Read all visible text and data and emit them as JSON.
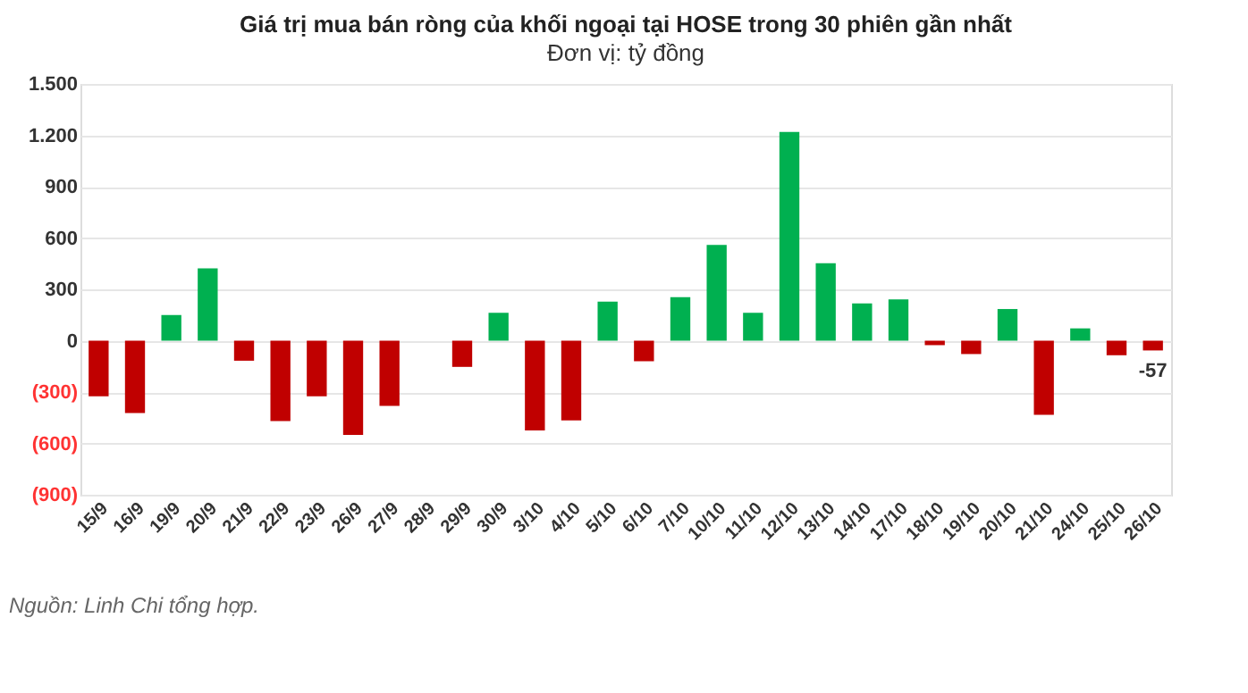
{
  "chart_data": {
    "type": "bar",
    "title": "Giá trị mua bán ròng của khối ngoại tại HOSE trong 30 phiên gần nhất",
    "subtitle": "Đơn vị: tỷ đồng",
    "categories": [
      "15/9",
      "16/9",
      "19/9",
      "20/9",
      "21/9",
      "22/9",
      "23/9",
      "26/9",
      "27/9",
      "28/9",
      "29/9",
      "30/9",
      "3/10",
      "4/10",
      "5/10",
      "6/10",
      "7/10",
      "10/10",
      "11/10",
      "12/10",
      "13/10",
      "14/10",
      "17/10",
      "18/10",
      "19/10",
      "20/10",
      "21/10",
      "24/10",
      "25/10",
      "26/10"
    ],
    "values": [
      -325,
      -423,
      150,
      423,
      -117,
      -469,
      -325,
      -550,
      -381,
      0,
      -153,
      163,
      -524,
      -465,
      228,
      -120,
      254,
      560,
      163,
      1220,
      452,
      218,
      241,
      -26,
      -78,
      185,
      -433,
      72,
      -85,
      -57
    ],
    "colors": [
      "#c00000",
      "#c00000",
      "#00b050",
      "#00b050",
      "#c00000",
      "#c00000",
      "#c00000",
      "#c00000",
      "#c00000",
      "#c00000",
      "#c00000",
      "#00b050",
      "#c00000",
      "#c00000",
      "#00b050",
      "#c00000",
      "#00b050",
      "#00b050",
      "#00b050",
      "#00b050",
      "#00b050",
      "#00b050",
      "#00b050",
      "#c00000",
      "#c00000",
      "#00b050",
      "#c00000",
      "#00b050",
      "#c00000",
      "#c00000"
    ],
    "value_labels": [
      null,
      null,
      null,
      null,
      null,
      null,
      null,
      null,
      null,
      null,
      null,
      null,
      null,
      null,
      null,
      null,
      null,
      null,
      null,
      null,
      null,
      null,
      null,
      null,
      null,
      null,
      null,
      null,
      null,
      "-57"
    ],
    "ylim": [
      -900,
      1500
    ],
    "yticks": [
      {
        "value": 1500,
        "label": "1.500"
      },
      {
        "value": 1200,
        "label": "1.200"
      },
      900,
      600,
      300,
      0,
      {
        "value": -300,
        "label": "(300)"
      },
      {
        "value": -600,
        "label": "(600)"
      },
      {
        "value": -900,
        "label": "(900)"
      }
    ],
    "grid": "y",
    "annotations": [
      "Nguồn: Linh Chi tổng hợp."
    ]
  }
}
